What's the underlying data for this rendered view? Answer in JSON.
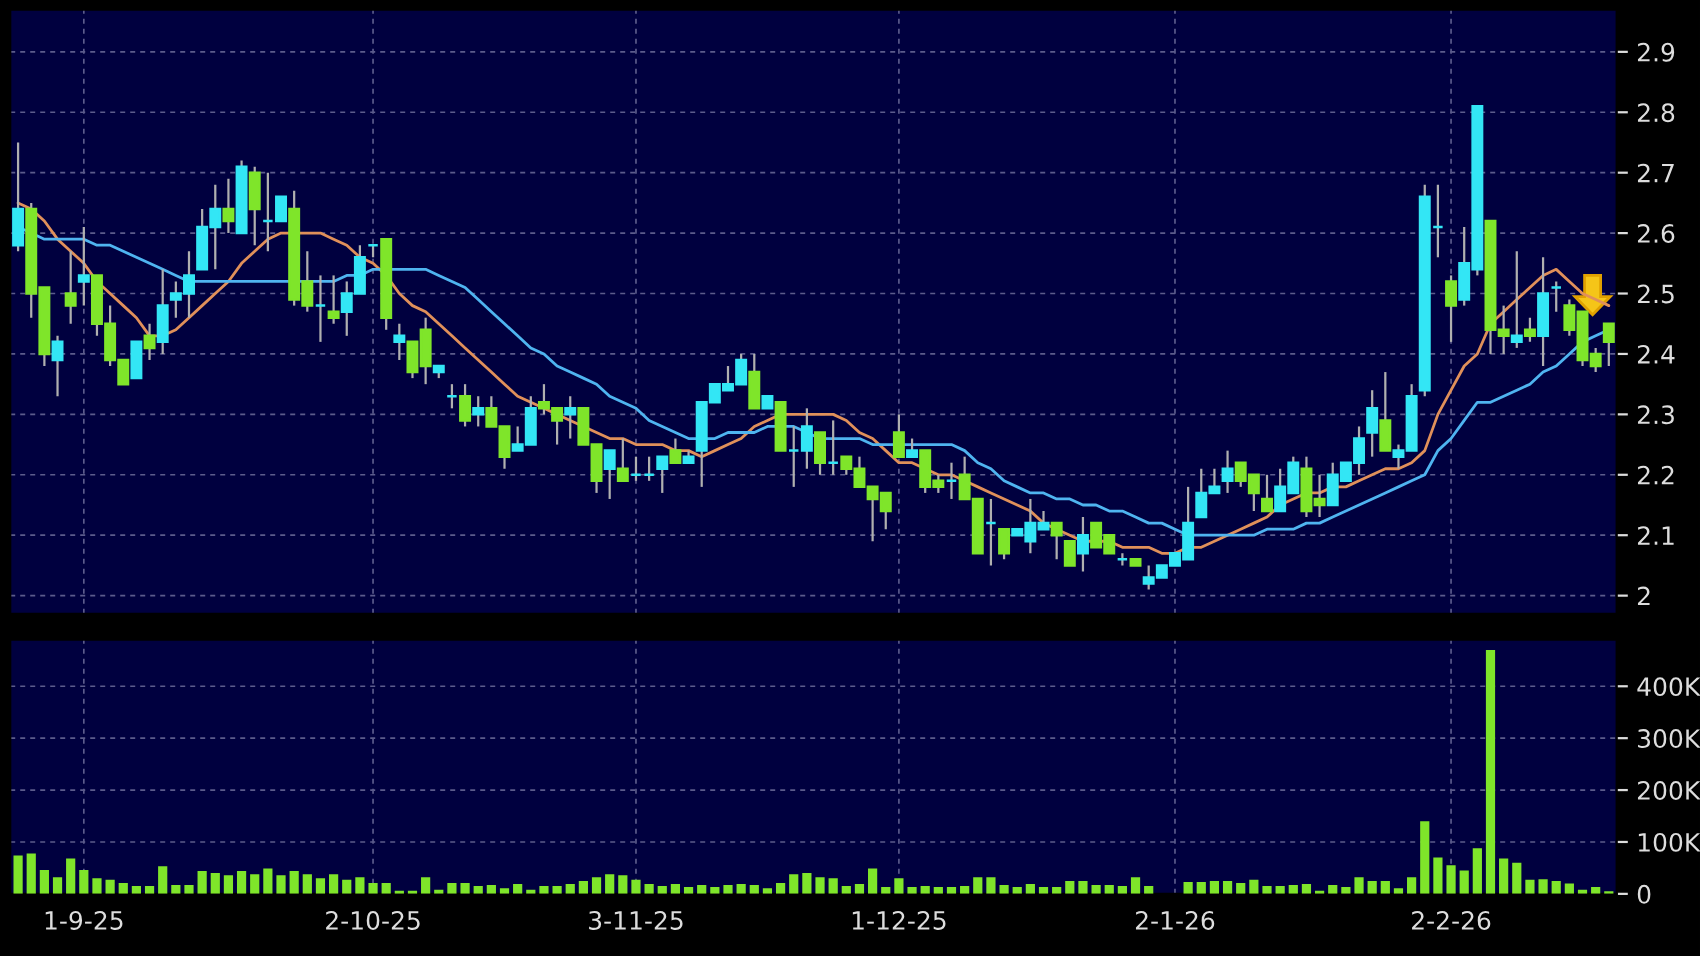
{
  "chart_data": [
    {
      "type": "candlestick",
      "categories": [
        null,
        null,
        null,
        null,
        null,
        null,
        null,
        null,
        null,
        null,
        null,
        null,
        null,
        null,
        null,
        null,
        null,
        null,
        null,
        null,
        null,
        null,
        null,
        null,
        null,
        null,
        null,
        null,
        null,
        null,
        null,
        null,
        null,
        null,
        null,
        null,
        null,
        null,
        null,
        null,
        null,
        null,
        null,
        null,
        null,
        null,
        null,
        null,
        null,
        null,
        null,
        null,
        null,
        null,
        null,
        null,
        null,
        null,
        null,
        null,
        null,
        null,
        null,
        null,
        null,
        null,
        null,
        null,
        null,
        null,
        null,
        null,
        null,
        null,
        null,
        null,
        null,
        null,
        null,
        null,
        null,
        null,
        null,
        null,
        null,
        null,
        null,
        null,
        null,
        null,
        null,
        null,
        null,
        null,
        null,
        null,
        null,
        null,
        null,
        null,
        null,
        null,
        null,
        null,
        null,
        null,
        null,
        null,
        null,
        null,
        null,
        null,
        null,
        null,
        null,
        null,
        null,
        null,
        null,
        null,
        null,
        null
      ],
      "ohlc": [
        [
          2.58,
          2.75,
          2.57,
          2.64
        ],
        [
          2.64,
          2.65,
          2.46,
          2.5
        ],
        [
          2.51,
          2.51,
          2.38,
          2.4
        ],
        [
          2.39,
          2.43,
          2.33,
          2.42
        ],
        [
          2.5,
          2.57,
          2.45,
          2.48
        ],
        [
          2.52,
          2.61,
          2.48,
          2.53
        ],
        [
          2.53,
          2.53,
          2.43,
          2.45
        ],
        [
          2.45,
          2.48,
          2.38,
          2.39
        ],
        [
          2.39,
          2.39,
          2.35,
          2.35
        ],
        [
          2.36,
          2.42,
          2.36,
          2.42
        ],
        [
          2.43,
          2.45,
          2.39,
          2.41
        ],
        [
          2.42,
          2.54,
          2.4,
          2.48
        ],
        [
          2.49,
          2.52,
          2.46,
          2.5
        ],
        [
          2.5,
          2.57,
          2.46,
          2.53
        ],
        [
          2.54,
          2.64,
          2.54,
          2.61
        ],
        [
          2.61,
          2.68,
          2.54,
          2.64
        ],
        [
          2.64,
          2.69,
          2.6,
          2.62
        ],
        [
          2.6,
          2.72,
          2.6,
          2.71
        ],
        [
          2.7,
          2.71,
          2.58,
          2.64
        ],
        [
          2.62,
          2.7,
          2.57,
          2.62
        ],
        [
          2.62,
          2.66,
          2.62,
          2.66
        ],
        [
          2.64,
          2.67,
          2.48,
          2.49
        ],
        [
          2.52,
          2.57,
          2.47,
          2.48
        ],
        [
          2.48,
          2.53,
          2.42,
          2.48
        ],
        [
          2.47,
          2.53,
          2.45,
          2.46
        ],
        [
          2.47,
          2.52,
          2.43,
          2.5
        ],
        [
          2.5,
          2.58,
          2.5,
          2.56
        ],
        [
          2.58,
          2.58,
          2.56,
          2.58
        ],
        [
          2.59,
          2.59,
          2.44,
          2.46
        ],
        [
          2.42,
          2.45,
          2.39,
          2.43
        ],
        [
          2.42,
          2.42,
          2.36,
          2.37
        ],
        [
          2.44,
          2.46,
          2.35,
          2.38
        ],
        [
          2.37,
          2.38,
          2.36,
          2.38
        ],
        [
          2.33,
          2.35,
          2.31,
          2.33
        ],
        [
          2.33,
          2.35,
          2.28,
          2.29
        ],
        [
          2.3,
          2.33,
          2.28,
          2.31
        ],
        [
          2.31,
          2.33,
          2.28,
          2.28
        ],
        [
          2.28,
          2.28,
          2.21,
          2.23
        ],
        [
          2.24,
          2.28,
          2.24,
          2.25
        ],
        [
          2.25,
          2.33,
          2.25,
          2.31
        ],
        [
          2.32,
          2.35,
          2.3,
          2.31
        ],
        [
          2.31,
          2.31,
          2.25,
          2.29
        ],
        [
          2.3,
          2.33,
          2.26,
          2.31
        ],
        [
          2.31,
          2.31,
          2.25,
          2.25
        ],
        [
          2.25,
          2.25,
          2.17,
          2.19
        ],
        [
          2.21,
          2.24,
          2.16,
          2.24
        ],
        [
          2.21,
          2.26,
          2.19,
          2.19
        ],
        [
          2.2,
          2.23,
          2.19,
          2.2
        ],
        [
          2.2,
          2.23,
          2.19,
          2.2
        ],
        [
          2.21,
          2.23,
          2.17,
          2.23
        ],
        [
          2.24,
          2.26,
          2.22,
          2.22
        ],
        [
          2.22,
          2.24,
          2.22,
          2.23
        ],
        [
          2.24,
          2.32,
          2.18,
          2.32
        ],
        [
          2.32,
          2.35,
          2.32,
          2.35
        ],
        [
          2.34,
          2.38,
          2.34,
          2.35
        ],
        [
          2.35,
          2.4,
          2.35,
          2.39
        ],
        [
          2.37,
          2.4,
          2.31,
          2.31
        ],
        [
          2.31,
          2.33,
          2.31,
          2.33
        ],
        [
          2.32,
          2.32,
          2.24,
          2.24
        ],
        [
          2.24,
          2.28,
          2.18,
          2.24
        ],
        [
          2.24,
          2.31,
          2.21,
          2.28
        ],
        [
          2.27,
          2.27,
          2.2,
          2.22
        ],
        [
          2.22,
          2.29,
          2.2,
          2.22
        ],
        [
          2.23,
          2.23,
          2.2,
          2.21
        ],
        [
          2.21,
          2.23,
          2.18,
          2.18
        ],
        [
          2.18,
          2.18,
          2.09,
          2.16
        ],
        [
          2.17,
          2.17,
          2.11,
          2.14
        ],
        [
          2.27,
          2.3,
          2.23,
          2.23
        ],
        [
          2.23,
          2.26,
          2.23,
          2.24
        ],
        [
          2.24,
          2.24,
          2.17,
          2.18
        ],
        [
          2.19,
          2.2,
          2.17,
          2.18
        ],
        [
          2.19,
          2.22,
          2.16,
          2.19
        ],
        [
          2.2,
          2.23,
          2.16,
          2.16
        ],
        [
          2.16,
          2.16,
          2.07,
          2.07
        ],
        [
          2.12,
          2.16,
          2.05,
          2.12
        ],
        [
          2.11,
          2.11,
          2.06,
          2.07
        ],
        [
          2.1,
          2.11,
          2.1,
          2.11
        ],
        [
          2.09,
          2.16,
          2.07,
          2.12
        ],
        [
          2.11,
          2.14,
          2.11,
          2.12
        ],
        [
          2.12,
          2.12,
          2.06,
          2.1
        ],
        [
          2.09,
          2.09,
          2.05,
          2.05
        ],
        [
          2.07,
          2.13,
          2.04,
          2.1
        ],
        [
          2.12,
          2.12,
          2.08,
          2.08
        ],
        [
          2.1,
          2.1,
          2.07,
          2.07
        ],
        [
          2.06,
          2.07,
          2.05,
          2.06
        ],
        [
          2.06,
          2.06,
          2.05,
          2.05
        ],
        [
          2.02,
          2.05,
          2.01,
          2.03
        ],
        [
          2.03,
          2.05,
          2.03,
          2.05
        ],
        [
          2.05,
          2.07,
          2.05,
          2.07
        ],
        [
          2.06,
          2.18,
          2.06,
          2.12
        ],
        [
          2.13,
          2.21,
          2.13,
          2.17
        ],
        [
          2.17,
          2.21,
          2.17,
          2.18
        ],
        [
          2.19,
          2.24,
          2.17,
          2.21
        ],
        [
          2.22,
          2.22,
          2.18,
          2.19
        ],
        [
          2.2,
          2.2,
          2.14,
          2.17
        ],
        [
          2.16,
          2.2,
          2.14,
          2.14
        ],
        [
          2.14,
          2.21,
          2.14,
          2.18
        ],
        [
          2.17,
          2.23,
          2.17,
          2.22
        ],
        [
          2.21,
          2.23,
          2.13,
          2.14
        ],
        [
          2.16,
          2.2,
          2.13,
          2.15
        ],
        [
          2.15,
          2.22,
          2.15,
          2.2
        ],
        [
          2.19,
          2.22,
          2.19,
          2.22
        ],
        [
          2.22,
          2.28,
          2.2,
          2.26
        ],
        [
          2.27,
          2.34,
          2.23,
          2.31
        ],
        [
          2.29,
          2.37,
          2.24,
          2.24
        ],
        [
          2.23,
          2.25,
          2.21,
          2.24
        ],
        [
          2.24,
          2.35,
          2.24,
          2.33
        ],
        [
          2.34,
          2.68,
          2.33,
          2.66
        ],
        [
          2.61,
          2.68,
          2.56,
          2.61
        ],
        [
          2.52,
          2.53,
          2.42,
          2.48
        ],
        [
          2.49,
          2.61,
          2.48,
          2.55
        ],
        [
          2.54,
          2.81,
          2.53,
          2.81
        ],
        [
          2.62,
          2.62,
          2.4,
          2.44
        ],
        [
          2.44,
          2.48,
          2.4,
          2.43
        ],
        [
          2.42,
          2.57,
          2.41,
          2.43
        ],
        [
          2.44,
          2.46,
          2.42,
          2.43
        ],
        [
          2.43,
          2.56,
          2.38,
          2.5
        ],
        [
          2.51,
          2.52,
          2.47,
          2.51
        ],
        [
          2.48,
          2.49,
          2.43,
          2.44
        ],
        [
          2.47,
          2.47,
          2.38,
          2.39
        ],
        [
          2.4,
          2.41,
          2.37,
          2.38
        ],
        [
          2.45,
          2.45,
          2.38,
          2.42
        ]
      ],
      "colors": [
        "#33e6f5",
        "#7fe52a",
        "#7fe52a",
        "#33e6f5",
        "#7fe52a",
        "#33e6f5",
        "#7fe52a",
        "#7fe52a",
        "#7fe52a",
        "#33e6f5",
        "#7fe52a",
        "#33e6f5",
        "#33e6f5",
        "#33e6f5",
        "#33e6f5",
        "#33e6f5",
        "#7fe52a",
        "#33e6f5",
        "#7fe52a",
        "#33e6f5",
        "#33e6f5",
        "#7fe52a",
        "#7fe52a",
        "#33e6f5",
        "#7fe52a",
        "#33e6f5",
        "#33e6f5",
        "#33e6f5",
        "#7fe52a",
        "#33e6f5",
        "#7fe52a",
        "#7fe52a",
        "#33e6f5",
        "#33e6f5",
        "#7fe52a",
        "#33e6f5",
        "#7fe52a",
        "#7fe52a",
        "#33e6f5",
        "#33e6f5",
        "#7fe52a",
        "#7fe52a",
        "#33e6f5",
        "#7fe52a",
        "#7fe52a",
        "#33e6f5",
        "#7fe52a",
        "#33e6f5",
        "#33e6f5",
        "#33e6f5",
        "#7fe52a",
        "#33e6f5",
        "#33e6f5",
        "#33e6f5",
        "#33e6f5",
        "#33e6f5",
        "#7fe52a",
        "#33e6f5",
        "#7fe52a",
        "#33e6f5",
        "#33e6f5",
        "#7fe52a",
        "#33e6f5",
        "#7fe52a",
        "#7fe52a",
        "#7fe52a",
        "#7fe52a",
        "#7fe52a",
        "#33e6f5",
        "#7fe52a",
        "#7fe52a",
        "#33e6f5",
        "#7fe52a",
        "#7fe52a",
        "#33e6f5",
        "#7fe52a",
        "#33e6f5",
        "#33e6f5",
        "#33e6f5",
        "#7fe52a",
        "#7fe52a",
        "#33e6f5",
        "#7fe52a",
        "#7fe52a",
        "#33e6f5",
        "#7fe52a",
        "#33e6f5",
        "#33e6f5",
        "#33e6f5",
        "#33e6f5",
        "#33e6f5",
        "#33e6f5",
        "#33e6f5",
        "#7fe52a",
        "#7fe52a",
        "#7fe52a",
        "#33e6f5",
        "#33e6f5",
        "#7fe52a",
        "#7fe52a",
        "#33e6f5",
        "#33e6f5",
        "#33e6f5",
        "#33e6f5",
        "#7fe52a",
        "#33e6f5",
        "#33e6f5",
        "#33e6f5",
        "#33e6f5",
        "#7fe52a",
        "#33e6f5",
        "#33e6f5",
        "#7fe52a",
        "#7fe52a",
        "#33e6f5",
        "#7fe52a",
        "#33e6f5",
        "#33e6f5",
        "#7fe52a",
        "#7fe52a",
        "#7fe52a",
        "#7fe52a"
      ],
      "series": [
        {
          "type": "line",
          "color": "#e0905a",
          "values": [
            2.65,
            2.64,
            2.62,
            2.59,
            2.57,
            2.55,
            2.52,
            2.5,
            2.48,
            2.46,
            2.43,
            2.43,
            2.44,
            2.46,
            2.48,
            2.5,
            2.52,
            2.55,
            2.57,
            2.59,
            2.6,
            2.6,
            2.6,
            2.6,
            2.59,
            2.58,
            2.56,
            2.55,
            2.53,
            2.5,
            2.48,
            2.47,
            2.45,
            2.43,
            2.41,
            2.39,
            2.37,
            2.35,
            2.33,
            2.32,
            2.31,
            2.3,
            2.29,
            2.28,
            2.27,
            2.26,
            2.26,
            2.25,
            2.25,
            2.25,
            2.24,
            2.24,
            2.23,
            2.24,
            2.25,
            2.26,
            2.28,
            2.29,
            2.3,
            2.3,
            2.3,
            2.3,
            2.3,
            2.29,
            2.27,
            2.26,
            2.24,
            2.22,
            2.22,
            2.21,
            2.2,
            2.2,
            2.19,
            2.18,
            2.17,
            2.16,
            2.15,
            2.14,
            2.12,
            2.11,
            2.1,
            2.09,
            2.09,
            2.09,
            2.08,
            2.08,
            2.08,
            2.07,
            2.07,
            2.08,
            2.08,
            2.09,
            2.1,
            2.11,
            2.12,
            2.13,
            2.15,
            2.16,
            2.17,
            2.17,
            2.18,
            2.18,
            2.19,
            2.2,
            2.21,
            2.21,
            2.22,
            2.24,
            2.3,
            2.34,
            2.38,
            2.4,
            2.45,
            2.47,
            2.49,
            2.51,
            2.53,
            2.54,
            2.52,
            2.5,
            2.49,
            2.48
          ]
        },
        {
          "type": "line",
          "color": "#4fb4f0",
          "values": [
            2.61,
            2.6,
            2.59,
            2.59,
            2.59,
            2.59,
            2.58,
            2.58,
            2.57,
            2.56,
            2.55,
            2.54,
            2.53,
            2.52,
            2.52,
            2.52,
            2.52,
            2.52,
            2.52,
            2.52,
            2.52,
            2.52,
            2.52,
            2.52,
            2.52,
            2.53,
            2.53,
            2.54,
            2.54,
            2.54,
            2.54,
            2.54,
            2.53,
            2.52,
            2.51,
            2.49,
            2.47,
            2.45,
            2.43,
            2.41,
            2.4,
            2.38,
            2.37,
            2.36,
            2.35,
            2.33,
            2.32,
            2.31,
            2.29,
            2.28,
            2.27,
            2.26,
            2.26,
            2.26,
            2.27,
            2.27,
            2.27,
            2.28,
            2.28,
            2.28,
            2.27,
            2.26,
            2.26,
            2.26,
            2.26,
            2.25,
            2.25,
            2.25,
            2.25,
            2.25,
            2.25,
            2.25,
            2.24,
            2.22,
            2.21,
            2.19,
            2.18,
            2.17,
            2.17,
            2.16,
            2.16,
            2.15,
            2.15,
            2.14,
            2.14,
            2.13,
            2.12,
            2.12,
            2.11,
            2.1,
            2.1,
            2.1,
            2.1,
            2.1,
            2.1,
            2.11,
            2.11,
            2.11,
            2.12,
            2.12,
            2.13,
            2.14,
            2.15,
            2.16,
            2.17,
            2.18,
            2.19,
            2.2,
            2.24,
            2.26,
            2.29,
            2.32,
            2.32,
            2.33,
            2.34,
            2.35,
            2.37,
            2.38,
            2.4,
            2.42,
            2.43,
            2.44
          ]
        }
      ],
      "ylim": [
        1.97,
        2.97
      ],
      "yticks": [
        2,
        2.1,
        2.2,
        2.3,
        2.4,
        2.5,
        2.6,
        2.7,
        2.8,
        2.9
      ],
      "grid": true,
      "tick_labels": "y"
    },
    {
      "type": "bar",
      "categories": [
        null,
        null,
        null,
        null,
        null,
        "1-9-25",
        null,
        null,
        null,
        null,
        null,
        null,
        null,
        null,
        null,
        null,
        null,
        null,
        null,
        null,
        null,
        null,
        null,
        null,
        null,
        null,
        null,
        "2-10-25",
        null,
        null,
        null,
        null,
        null,
        null,
        null,
        null,
        null,
        null,
        null,
        null,
        null,
        null,
        null,
        null,
        null,
        null,
        null,
        "3-11-25",
        null,
        null,
        null,
        null,
        null,
        null,
        null,
        null,
        null,
        null,
        null,
        null,
        null,
        null,
        null,
        null,
        null,
        null,
        null,
        "1-12-25",
        null,
        null,
        null,
        null,
        null,
        null,
        null,
        null,
        null,
        null,
        null,
        null,
        null,
        null,
        null,
        null,
        null,
        null,
        null,
        null,
        "2-1-26",
        null,
        null,
        null,
        null,
        null,
        null,
        null,
        null,
        null,
        null,
        null,
        null,
        null,
        null,
        null,
        null,
        null,
        null,
        null,
        null,
        "2-2-26",
        null,
        null,
        null,
        null,
        null,
        null,
        null,
        null,
        null,
        null,
        null,
        null
      ],
      "values": [
        74000,
        78000,
        46000,
        32000,
        68000,
        46000,
        30000,
        27000,
        21000,
        15000,
        15000,
        53000,
        17000,
        17000,
        44000,
        40000,
        36000,
        44000,
        38000,
        49000,
        36000,
        44000,
        38000,
        30000,
        38000,
        27000,
        32000,
        21000,
        21000,
        6000,
        6000,
        32000,
        8000,
        21000,
        21000,
        15000,
        17000,
        11000,
        19000,
        8000,
        15000,
        15000,
        19000,
        25000,
        32000,
        38000,
        36000,
        27000,
        19000,
        15000,
        19000,
        13000,
        17000,
        13000,
        17000,
        19000,
        17000,
        11000,
        21000,
        38000,
        40000,
        32000,
        30000,
        15000,
        19000,
        49000,
        13000,
        30000,
        13000,
        15000,
        13000,
        13000,
        15000,
        32000,
        32000,
        17000,
        13000,
        19000,
        13000,
        13000,
        25000,
        25000,
        17000,
        17000,
        15000,
        32000,
        15000,
        null,
        null,
        23000,
        23000,
        25000,
        25000,
        21000,
        27000,
        15000,
        15000,
        17000,
        19000,
        6000,
        17000,
        13000,
        32000,
        25000,
        25000,
        11000,
        32000,
        140000,
        70000,
        55000,
        45000,
        88000,
        470000,
        68000,
        60000,
        27000,
        28000,
        25000,
        20000,
        8000,
        13000,
        5000
      ],
      "color": "#7fe52a",
      "ylim": [
        0,
        490000
      ],
      "yticks": [
        0,
        {
          "value": 100000,
          "label": "100K"
        },
        {
          "value": 200000,
          "label": "200K"
        },
        {
          "value": 300000,
          "label": "300K"
        },
        {
          "value": 400000,
          "label": "400K"
        }
      ],
      "grid": true
    }
  ]
}
